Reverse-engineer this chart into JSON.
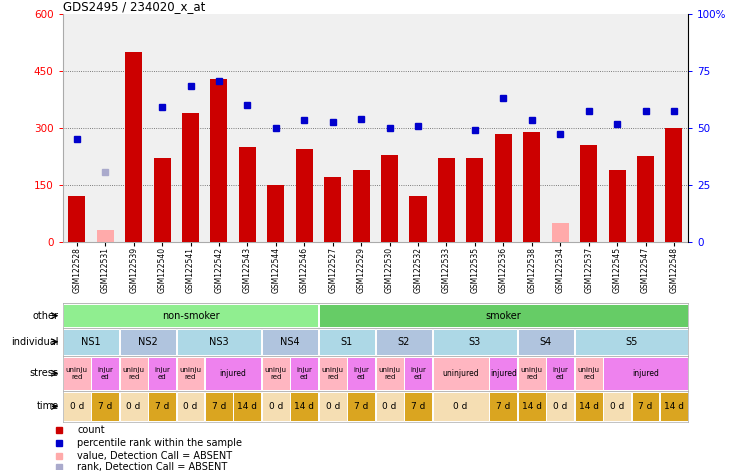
{
  "title": "GDS2495 / 234020_x_at",
  "samples": [
    "GSM122528",
    "GSM122531",
    "GSM122539",
    "GSM122540",
    "GSM122541",
    "GSM122542",
    "GSM122543",
    "GSM122544",
    "GSM122546",
    "GSM122527",
    "GSM122529",
    "GSM122530",
    "GSM122532",
    "GSM122533",
    "GSM122535",
    "GSM122536",
    "GSM122538",
    "GSM122534",
    "GSM122537",
    "GSM122545",
    "GSM122547",
    "GSM122548"
  ],
  "bar_values": [
    120,
    30,
    500,
    220,
    340,
    430,
    250,
    150,
    245,
    170,
    190,
    230,
    120,
    220,
    220,
    285,
    290,
    50,
    255,
    190,
    225,
    300
  ],
  "bar_absent": [
    false,
    true,
    false,
    false,
    false,
    false,
    false,
    false,
    false,
    false,
    false,
    false,
    false,
    false,
    false,
    false,
    false,
    true,
    false,
    false,
    false,
    false
  ],
  "rank_values": [
    270,
    185,
    null,
    355,
    410,
    425,
    360,
    300,
    320,
    315,
    325,
    300,
    305,
    null,
    295,
    380,
    320,
    285,
    345,
    310,
    345,
    345
  ],
  "rank_absent": [
    false,
    true,
    false,
    false,
    false,
    false,
    false,
    false,
    false,
    false,
    false,
    false,
    false,
    false,
    false,
    false,
    false,
    false,
    false,
    false,
    false,
    false
  ],
  "ylim_left": [
    0,
    600
  ],
  "ylim_right": [
    0,
    100
  ],
  "yticks_left": [
    0,
    150,
    300,
    450,
    600
  ],
  "yticks_right": [
    0,
    25,
    50,
    75,
    100
  ],
  "other_row": [
    {
      "label": "non-smoker",
      "start": 0,
      "end": 9,
      "color": "#90ee90"
    },
    {
      "label": "smoker",
      "start": 9,
      "end": 22,
      "color": "#66cc66"
    }
  ],
  "individual_row": [
    {
      "label": "NS1",
      "start": 0,
      "end": 2,
      "color": "#add8e6"
    },
    {
      "label": "NS2",
      "start": 2,
      "end": 4,
      "color": "#b0c4de"
    },
    {
      "label": "NS3",
      "start": 4,
      "end": 7,
      "color": "#add8e6"
    },
    {
      "label": "NS4",
      "start": 7,
      "end": 9,
      "color": "#b0c4de"
    },
    {
      "label": "S1",
      "start": 9,
      "end": 11,
      "color": "#add8e6"
    },
    {
      "label": "S2",
      "start": 11,
      "end": 13,
      "color": "#b0c4de"
    },
    {
      "label": "S3",
      "start": 13,
      "end": 16,
      "color": "#add8e6"
    },
    {
      "label": "S4",
      "start": 16,
      "end": 18,
      "color": "#b0c4de"
    },
    {
      "label": "S5",
      "start": 18,
      "end": 22,
      "color": "#add8e6"
    }
  ],
  "stress_row": [
    {
      "label": "uninju\nred",
      "start": 0,
      "end": 1,
      "color": "#ffb6c1"
    },
    {
      "label": "injur\ned",
      "start": 1,
      "end": 2,
      "color": "#ee82ee"
    },
    {
      "label": "uninju\nred",
      "start": 2,
      "end": 3,
      "color": "#ffb6c1"
    },
    {
      "label": "injur\ned",
      "start": 3,
      "end": 4,
      "color": "#ee82ee"
    },
    {
      "label": "uninju\nred",
      "start": 4,
      "end": 5,
      "color": "#ffb6c1"
    },
    {
      "label": "injured",
      "start": 5,
      "end": 7,
      "color": "#ee82ee"
    },
    {
      "label": "uninju\nred",
      "start": 7,
      "end": 8,
      "color": "#ffb6c1"
    },
    {
      "label": "injur\ned",
      "start": 8,
      "end": 9,
      "color": "#ee82ee"
    },
    {
      "label": "uninju\nred",
      "start": 9,
      "end": 10,
      "color": "#ffb6c1"
    },
    {
      "label": "injur\ned",
      "start": 10,
      "end": 11,
      "color": "#ee82ee"
    },
    {
      "label": "uninju\nred",
      "start": 11,
      "end": 12,
      "color": "#ffb6c1"
    },
    {
      "label": "injur\ned",
      "start": 12,
      "end": 13,
      "color": "#ee82ee"
    },
    {
      "label": "uninjured",
      "start": 13,
      "end": 15,
      "color": "#ffb6c1"
    },
    {
      "label": "injured",
      "start": 15,
      "end": 16,
      "color": "#ee82ee"
    },
    {
      "label": "uninju\nred",
      "start": 16,
      "end": 17,
      "color": "#ffb6c1"
    },
    {
      "label": "injur\ned",
      "start": 17,
      "end": 18,
      "color": "#ee82ee"
    },
    {
      "label": "uninju\nred",
      "start": 18,
      "end": 19,
      "color": "#ffb6c1"
    },
    {
      "label": "injured",
      "start": 19,
      "end": 22,
      "color": "#ee82ee"
    }
  ],
  "time_row": [
    {
      "label": "0 d",
      "start": 0,
      "end": 1,
      "color": "#f5deb3"
    },
    {
      "label": "7 d",
      "start": 1,
      "end": 2,
      "color": "#daa520"
    },
    {
      "label": "0 d",
      "start": 2,
      "end": 3,
      "color": "#f5deb3"
    },
    {
      "label": "7 d",
      "start": 3,
      "end": 4,
      "color": "#daa520"
    },
    {
      "label": "0 d",
      "start": 4,
      "end": 5,
      "color": "#f5deb3"
    },
    {
      "label": "7 d",
      "start": 5,
      "end": 6,
      "color": "#daa520"
    },
    {
      "label": "14 d",
      "start": 6,
      "end": 7,
      "color": "#daa520"
    },
    {
      "label": "0 d",
      "start": 7,
      "end": 8,
      "color": "#f5deb3"
    },
    {
      "label": "14 d",
      "start": 8,
      "end": 9,
      "color": "#daa520"
    },
    {
      "label": "0 d",
      "start": 9,
      "end": 10,
      "color": "#f5deb3"
    },
    {
      "label": "7 d",
      "start": 10,
      "end": 11,
      "color": "#daa520"
    },
    {
      "label": "0 d",
      "start": 11,
      "end": 12,
      "color": "#f5deb3"
    },
    {
      "label": "7 d",
      "start": 12,
      "end": 13,
      "color": "#daa520"
    },
    {
      "label": "0 d",
      "start": 13,
      "end": 15,
      "color": "#f5deb3"
    },
    {
      "label": "7 d",
      "start": 15,
      "end": 16,
      "color": "#daa520"
    },
    {
      "label": "14 d",
      "start": 16,
      "end": 17,
      "color": "#daa520"
    },
    {
      "label": "0 d",
      "start": 17,
      "end": 18,
      "color": "#f5deb3"
    },
    {
      "label": "14 d",
      "start": 18,
      "end": 19,
      "color": "#daa520"
    },
    {
      "label": "0 d",
      "start": 19,
      "end": 20,
      "color": "#f5deb3"
    },
    {
      "label": "7 d",
      "start": 20,
      "end": 21,
      "color": "#daa520"
    },
    {
      "label": "14 d",
      "start": 21,
      "end": 22,
      "color": "#daa520"
    }
  ],
  "bar_color": "#cc0000",
  "bar_absent_color": "#ffaaaa",
  "rank_color": "#0000cc",
  "rank_absent_color": "#aaaacc",
  "grid_color": "#888888",
  "bg_color": "#ffffff",
  "row_labels": [
    "other",
    "individual",
    "stress",
    "time"
  ],
  "legend_items": [
    {
      "color": "#cc0000",
      "label": "count"
    },
    {
      "color": "#0000cc",
      "label": "percentile rank within the sample"
    },
    {
      "color": "#ffaaaa",
      "label": "value, Detection Call = ABSENT"
    },
    {
      "color": "#aaaacc",
      "label": "rank, Detection Call = ABSENT"
    }
  ]
}
